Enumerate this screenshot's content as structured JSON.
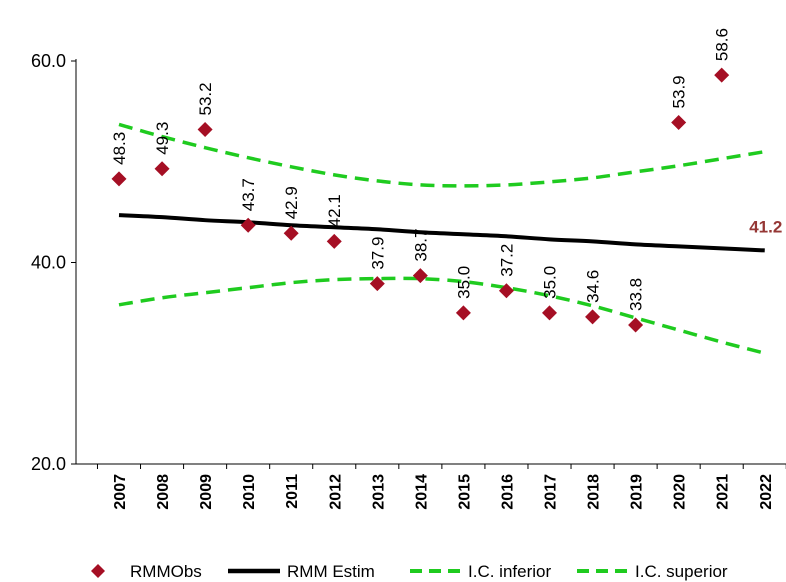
{
  "chart_data": {
    "type": "line",
    "x": [
      "2007",
      "2008",
      "2009",
      "2010",
      "2011",
      "2012",
      "2013",
      "2014",
      "2015",
      "2016",
      "2017",
      "2018",
      "2019",
      "2020",
      "2021",
      "2022"
    ],
    "ylim": [
      20,
      60
    ],
    "yticks": [
      "20.0",
      "40.0",
      "60.0"
    ],
    "series": [
      {
        "name": "RMMObs",
        "kind": "scatter",
        "marker": "diamond",
        "color": "#A50F24",
        "values": [
          48.3,
          49.3,
          53.2,
          43.7,
          42.9,
          42.1,
          37.9,
          38.7,
          35.0,
          37.2,
          35.0,
          34.6,
          33.8,
          53.9,
          58.6,
          null
        ],
        "labels": [
          "48.3",
          "49.3",
          "53.2",
          "43.7",
          "42.9",
          "42.1",
          "37.9",
          "38.7",
          "35.0",
          "37.2",
          "35.0",
          "34.6",
          "33.8",
          "53.9",
          "58.6",
          ""
        ]
      },
      {
        "name": "RMM Estim",
        "kind": "line",
        "style": "solid",
        "color": "#000000",
        "values": [
          44.7,
          44.5,
          44.2,
          44.0,
          43.7,
          43.5,
          43.3,
          43.0,
          42.8,
          42.6,
          42.3,
          42.1,
          41.8,
          41.6,
          41.4,
          41.2
        ],
        "end_label": "41.2",
        "end_label_color": "#953735"
      },
      {
        "name": "I.C. inferior",
        "kind": "line",
        "style": "dashed",
        "color": "#1FCB1F",
        "values": [
          35.8,
          36.5,
          37.0,
          37.5,
          38.0,
          38.3,
          38.4,
          38.4,
          38.1,
          37.5,
          36.7,
          35.7,
          34.5,
          33.3,
          32.1,
          31.0
        ]
      },
      {
        "name": "I.C. superior",
        "kind": "line",
        "style": "dashed",
        "color": "#1FCB1F",
        "values": [
          53.7,
          52.5,
          51.4,
          50.4,
          49.5,
          48.7,
          48.1,
          47.7,
          47.6,
          47.7,
          48.0,
          48.4,
          49.0,
          49.6,
          50.3,
          51.0
        ]
      }
    ],
    "legend": {
      "position": "bottom",
      "items": [
        {
          "label": "RMMObs",
          "symbol": "diamond",
          "color": "#A50F24"
        },
        {
          "label": "RMM Estim",
          "symbol": "solid-line",
          "color": "#000000"
        },
        {
          "label": "I.C. inferior",
          "symbol": "dashed-line",
          "color": "#1FCB1F"
        },
        {
          "label": "I.C. superior",
          "symbol": "dashed-line",
          "color": "#1FCB1F"
        }
      ]
    },
    "grid": false
  }
}
